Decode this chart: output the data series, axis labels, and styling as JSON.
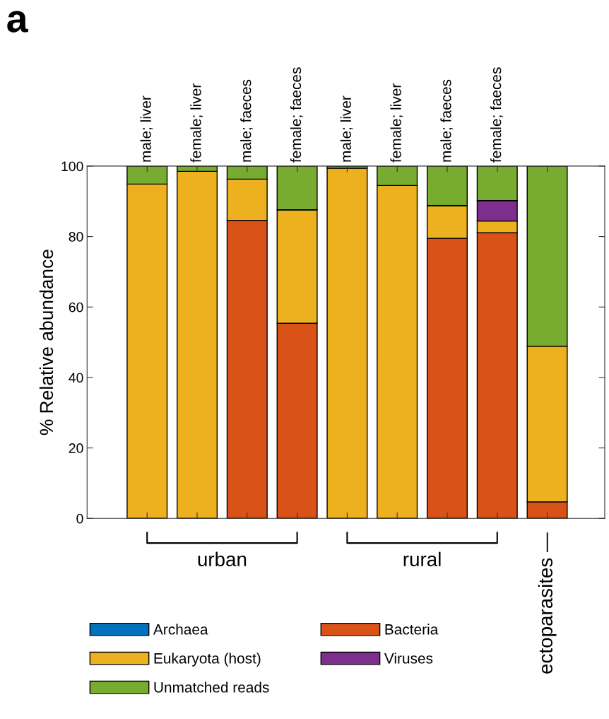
{
  "chart_data": {
    "type": "bar",
    "stacked": true,
    "ylabel": "% Relative abundance",
    "categories": [
      "male; liver",
      "female; liver",
      "male; faeces",
      "female; faeces",
      "male; liver",
      "female; liver",
      "male; faeces",
      "female; faeces",
      null
    ],
    "series": [
      {
        "name": "Archaea",
        "color": "#0072bd",
        "values": [
          0,
          0,
          0,
          0,
          0,
          0,
          0,
          0,
          0
        ]
      },
      {
        "name": "Bacteria",
        "color": "#d95319",
        "values": [
          null,
          null,
          84.6,
          55.4,
          0,
          null,
          79.5,
          81.1,
          4.7
        ]
      },
      {
        "name": "Eukaryota (host)",
        "color": "#edb120",
        "values": [
          94.9,
          98.5,
          11.7,
          32.2,
          99.4,
          94.5,
          9.3,
          3.3,
          44.2
        ]
      },
      {
        "name": "Viruses",
        "color": "#7e2f8e",
        "values": [
          0,
          0,
          0,
          0,
          0,
          0,
          0,
          5.8,
          0
        ]
      },
      {
        "name": "Unmatched reads",
        "color": "#77ac30",
        "values": [
          5.1,
          1.5,
          3.7,
          12.4,
          0.6,
          5.5,
          11.2,
          9.8,
          51.1
        ]
      }
    ],
    "ylim": [
      0,
      100
    ],
    "yticks": [
      0,
      20,
      40,
      60,
      80,
      100
    ],
    "grid": false,
    "legend": "bottom",
    "annotations": [
      "a",
      "urban",
      "rural",
      "ectoparasites —"
    ]
  }
}
